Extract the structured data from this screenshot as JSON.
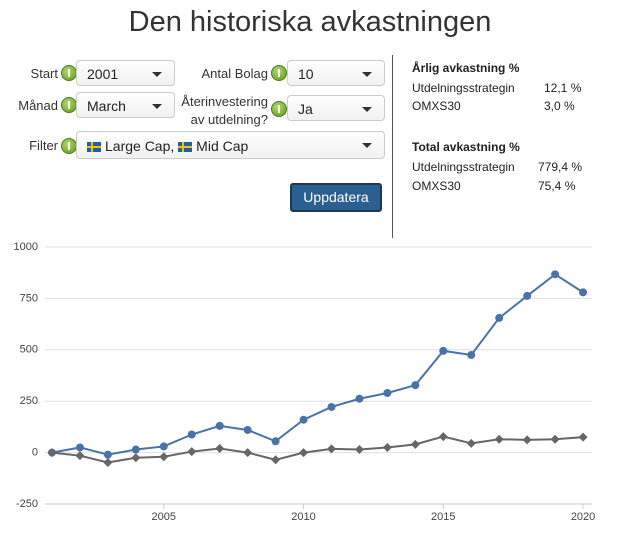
{
  "header": {
    "title": "Den historiska avkastningen"
  },
  "form": {
    "start": {
      "label": "Start",
      "value": "2001"
    },
    "antal_bolag": {
      "label": "Antal Bolag",
      "value": "10"
    },
    "manad": {
      "label": "Månad",
      "value": "March"
    },
    "aterinvestering": {
      "label": "Återinvestering av utdelning?",
      "value": "Ja"
    },
    "filter": {
      "label": "Filter",
      "items": [
        "Large Cap,",
        "Mid Cap"
      ]
    },
    "button": "Uppdatera"
  },
  "stats": {
    "annual": {
      "title": "Årlig avkastning %",
      "rows": [
        [
          "Utdelningsstrategin",
          "12,1 %"
        ],
        [
          "OMXS30",
          "3,0 %"
        ]
      ]
    },
    "total": {
      "title": "Total avkastning %",
      "rows": [
        [
          "Utdelningsstrategin",
          "779,4 %"
        ],
        [
          "OMXS30",
          "75,4 %"
        ]
      ]
    }
  },
  "chart_data": {
    "type": "line",
    "x": [
      2001,
      2002,
      2003,
      2004,
      2005,
      2006,
      2007,
      2008,
      2009,
      2010,
      2011,
      2012,
      2013,
      2014,
      2015,
      2016,
      2017,
      2018,
      2019,
      2020
    ],
    "series": [
      {
        "color": "#4a72a8",
        "marker": "circle",
        "values": [
          0,
          25,
          -10,
          15,
          30,
          88,
          130,
          110,
          55,
          160,
          222,
          262,
          290,
          328,
          495,
          475,
          655,
          762,
          867,
          779.4
        ]
      },
      {
        "color": "#666666",
        "marker": "diamond",
        "values": [
          0,
          -15,
          -48,
          -25,
          -20,
          5,
          20,
          0,
          -35,
          0,
          18,
          15,
          25,
          40,
          78,
          45,
          65,
          62,
          65,
          75.4
        ]
      }
    ],
    "xlim": [
      2000.75,
      2020.32
    ],
    "xticks": [
      2005,
      2010,
      2015,
      2020
    ],
    "ylim": [
      -250,
      1000
    ],
    "yticks": [
      -250,
      0,
      250,
      500,
      750,
      1000
    ],
    "grid": true
  }
}
